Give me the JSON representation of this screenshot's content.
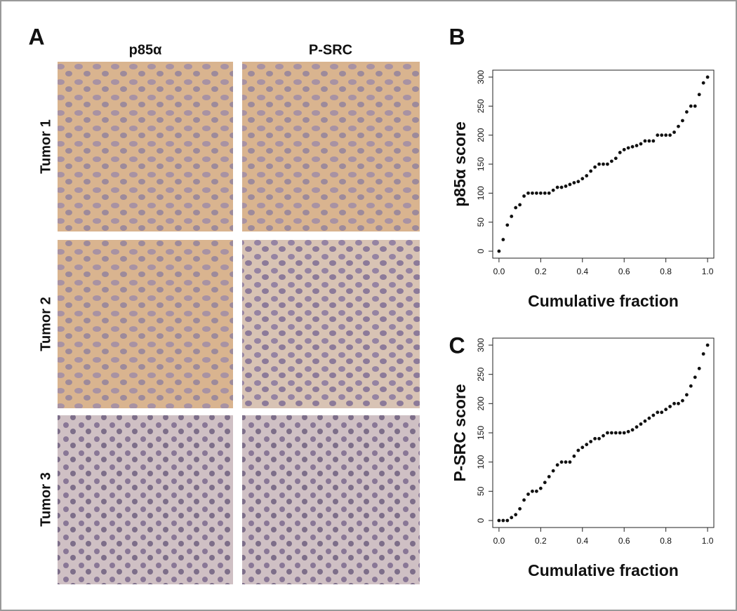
{
  "panel_labels": [
    "A",
    "B",
    "C"
  ],
  "panel_a": {
    "columns": [
      "p85α",
      "P-SRC"
    ],
    "rows": [
      "Tumor 1",
      "Tumor 2",
      "Tumor 3"
    ]
  },
  "chart_data": [
    {
      "type": "scatter",
      "xlabel": "Cumulative fraction",
      "ylabel": "p85α score",
      "color": "#111111",
      "x": [
        0,
        0.02,
        0.04,
        0.06,
        0.08,
        0.1,
        0.12,
        0.14,
        0.16,
        0.18,
        0.2,
        0.22,
        0.24,
        0.26,
        0.28,
        0.3,
        0.32,
        0.34,
        0.36,
        0.38,
        0.4,
        0.42,
        0.44,
        0.46,
        0.48,
        0.5,
        0.52,
        0.54,
        0.56,
        0.58,
        0.6,
        0.62,
        0.64,
        0.66,
        0.68,
        0.7,
        0.72,
        0.74,
        0.76,
        0.78,
        0.8,
        0.82,
        0.84,
        0.86,
        0.88,
        0.9,
        0.92,
        0.94,
        0.96,
        0.98,
        1
      ],
      "values": [
        0,
        20,
        45,
        60,
        75,
        80,
        95,
        100,
        100,
        100,
        100,
        100,
        100,
        105,
        110,
        110,
        112,
        115,
        118,
        120,
        125,
        130,
        138,
        145,
        150,
        150,
        150,
        155,
        160,
        170,
        175,
        178,
        180,
        182,
        185,
        190,
        190,
        190,
        200,
        200,
        200,
        200,
        205,
        215,
        225,
        240,
        250,
        250,
        270,
        290,
        300
      ],
      "xlim": [
        -0.03,
        1.03
      ],
      "ylim": [
        -12,
        312
      ],
      "xticks": [
        {
          "value": 0,
          "label": "0.0"
        },
        0.2,
        0.4,
        0.6,
        0.8,
        {
          "value": 1,
          "label": "1.0"
        }
      ],
      "yticks": [
        0,
        50,
        100,
        150,
        200,
        250,
        300
      ]
    },
    {
      "type": "scatter",
      "xlabel": "Cumulative fraction",
      "ylabel": "P-SRC score",
      "color": "#111111",
      "x": [
        0,
        0.02,
        0.04,
        0.06,
        0.08,
        0.1,
        0.12,
        0.14,
        0.16,
        0.18,
        0.2,
        0.22,
        0.24,
        0.26,
        0.28,
        0.3,
        0.32,
        0.34,
        0.36,
        0.38,
        0.4,
        0.42,
        0.44,
        0.46,
        0.48,
        0.5,
        0.52,
        0.54,
        0.56,
        0.58,
        0.6,
        0.62,
        0.64,
        0.66,
        0.68,
        0.7,
        0.72,
        0.74,
        0.76,
        0.78,
        0.8,
        0.82,
        0.84,
        0.86,
        0.88,
        0.9,
        0.92,
        0.94,
        0.96,
        0.98,
        1
      ],
      "values": [
        0,
        0,
        0,
        5,
        10,
        20,
        35,
        45,
        50,
        50,
        55,
        65,
        75,
        85,
        95,
        100,
        100,
        100,
        110,
        120,
        125,
        130,
        135,
        140,
        140,
        145,
        150,
        150,
        150,
        150,
        150,
        152,
        155,
        160,
        165,
        170,
        175,
        180,
        185,
        185,
        190,
        195,
        200,
        200,
        205,
        215,
        230,
        245,
        260,
        285,
        300
      ],
      "xlim": [
        -0.03,
        1.03
      ],
      "ylim": [
        -12,
        312
      ],
      "xticks": [
        {
          "value": 0,
          "label": "0.0"
        },
        0.2,
        0.4,
        0.6,
        0.8,
        {
          "value": 1,
          "label": "1.0"
        }
      ],
      "yticks": [
        0,
        50,
        100,
        150,
        200,
        250,
        300
      ]
    }
  ]
}
